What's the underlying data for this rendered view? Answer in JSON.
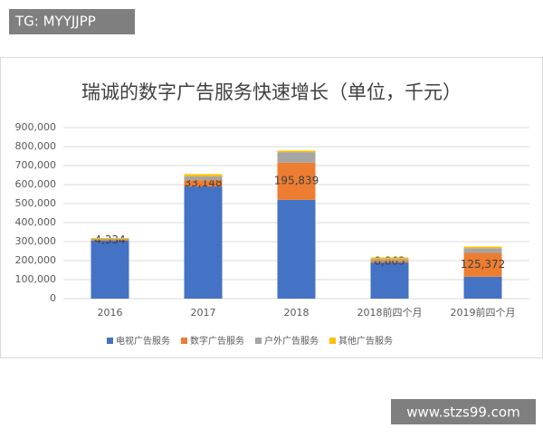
{
  "watermarks": {
    "top": "TG: MYYJJPP",
    "bottom": "www.stzs99.com"
  },
  "chart_data": {
    "type": "stacked-bar",
    "title": "瑞诚的数字广告服务快速增长（单位，千元）",
    "categories": [
      "2016",
      "2017",
      "2018",
      "2018前四个月",
      "2019前四个月"
    ],
    "series": [
      {
        "name": "电视广告服务",
        "color": "#4472c4",
        "values": [
          305000,
          590000,
          520000,
          190000,
          115000
        ]
      },
      {
        "name": "数字广告服务",
        "color": "#ed7d31",
        "values": [
          4334,
          33148,
          195839,
          8863,
          125372
        ],
        "value_labels": [
          "4,334",
          "33,148",
          "195,839",
          "8,863",
          "125,372"
        ]
      },
      {
        "name": "户外广告服务",
        "color": "#a5a5a5",
        "values": [
          5000,
          20000,
          55000,
          10000,
          25000
        ]
      },
      {
        "name": "其他广告服务",
        "color": "#ffc000",
        "values": [
          5000,
          12000,
          8000,
          8000,
          8000
        ]
      }
    ],
    "ylim": [
      0,
      900000
    ],
    "yticks": [
      0,
      {
        "value": 100000,
        "label": "100,000"
      },
      {
        "value": 200000,
        "label": "200,000"
      },
      {
        "value": 300000,
        "label": "300,000"
      },
      {
        "value": 400000,
        "label": "400,000"
      },
      {
        "value": 500000,
        "label": "500,000"
      },
      {
        "value": 600000,
        "label": "600,000"
      },
      {
        "value": 700000,
        "label": "700,000"
      },
      {
        "value": 800000,
        "label": "800,000"
      },
      {
        "value": 900000,
        "label": "900,000"
      }
    ],
    "grid": true,
    "legend": "bottom"
  }
}
